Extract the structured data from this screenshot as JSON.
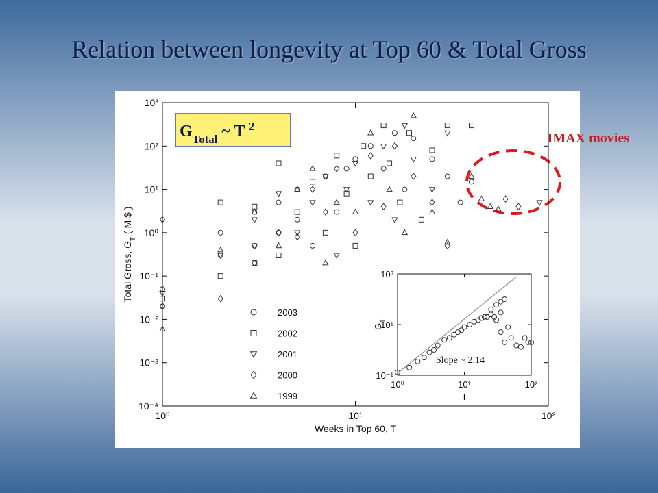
{
  "title": "Relation between longevity at Top 60 & Total Gross",
  "chart_data": [
    {
      "type": "scatter",
      "xlabel": "Weeks in Top 60, T",
      "ylabel": [
        "Total Gross, G",
        "T",
        " ( M $ )"
      ],
      "xscale": "log",
      "yscale": "log",
      "xlim": [
        1,
        100
      ],
      "ylim": [
        0.0001,
        1000
      ],
      "xticks": [
        {
          "value": 1,
          "label": "10⁰"
        },
        {
          "value": 10,
          "label": "10¹"
        },
        {
          "value": 100,
          "label": "10²"
        }
      ],
      "yticks": [
        {
          "value": 0.0001,
          "label": "10⁻⁴"
        },
        {
          "value": 0.001,
          "label": "10⁻³"
        },
        {
          "value": 0.01,
          "label": "10⁻²"
        },
        {
          "value": 0.1,
          "label": "10⁻¹"
        },
        {
          "value": 1,
          "label": "10⁰"
        },
        {
          "value": 10,
          "label": "10¹"
        },
        {
          "value": 100,
          "label": "10²"
        },
        {
          "value": 1000,
          "label": "10³"
        }
      ],
      "series": [
        {
          "name": "2003",
          "marker": "circle",
          "color": "#333333",
          "x": [
            1,
            1,
            2,
            2,
            3,
            3,
            4,
            4,
            5,
            5,
            6,
            7,
            8,
            9,
            10,
            12,
            14,
            16,
            18,
            20,
            25,
            30,
            35,
            40
          ],
          "values": [
            0.05,
            0.02,
            0.3,
            1,
            0.5,
            3,
            1,
            5,
            2,
            10,
            0.5,
            20,
            3,
            30,
            50,
            100,
            30,
            200,
            10,
            150,
            50,
            20,
            5,
            15
          ]
        },
        {
          "name": "2002",
          "marker": "square",
          "color": "#333333",
          "x": [
            1,
            2,
            2,
            3,
            3,
            4,
            4,
            5,
            6,
            7,
            8,
            9,
            10,
            11,
            12,
            14,
            15,
            17,
            19,
            22,
            25,
            30,
            40
          ],
          "values": [
            0.03,
            0.1,
            5,
            0.2,
            4,
            0.3,
            40,
            3,
            15,
            1,
            60,
            8,
            0.5,
            100,
            20,
            300,
            40,
            5,
            200,
            2,
            80,
            300,
            300
          ]
        },
        {
          "name": "2001",
          "marker": "triangle-down",
          "color": "#333333",
          "x": [
            1,
            2,
            3,
            3,
            4,
            5,
            6,
            7,
            8,
            9,
            10,
            12,
            14,
            16,
            18,
            20,
            25,
            30,
            90
          ],
          "values": [
            0.04,
            0.3,
            0.5,
            2,
            8,
            1,
            5,
            20,
            0.3,
            10,
            40,
            5,
            100,
            2,
            300,
            50,
            10,
            200,
            5
          ]
        },
        {
          "name": "2000",
          "marker": "diamond",
          "color": "#333333",
          "x": [
            1,
            1,
            2,
            3,
            4,
            5,
            6,
            7,
            8,
            10,
            12,
            14,
            16,
            20,
            25,
            30,
            60,
            70
          ],
          "values": [
            2,
            0.02,
            0.03,
            0.2,
            1,
            0.8,
            10,
            3,
            30,
            1,
            60,
            4,
            100,
            20,
            5,
            0.5,
            6,
            4
          ]
        },
        {
          "name": "1999",
          "marker": "triangle-up",
          "color": "#333333",
          "x": [
            1,
            2,
            3,
            4,
            5,
            6,
            7,
            8,
            10,
            12,
            15,
            18,
            20,
            25,
            30,
            40,
            45,
            50,
            55
          ],
          "values": [
            0.006,
            0.4,
            3,
            0.5,
            10,
            30,
            0.2,
            5,
            3,
            200,
            10,
            1,
            500,
            3,
            0.6,
            20,
            6,
            4,
            3.5
          ]
        }
      ],
      "formula": [
        "G",
        "Total",
        " ~ T ",
        "2"
      ],
      "highlight_label": "IMAX movies"
    },
    {
      "type": "scatter",
      "xlabel": "T",
      "ylabel": [
        "G",
        "T"
      ],
      "xscale": "log",
      "yscale": "log",
      "xlim": [
        1,
        100
      ],
      "ylim": [
        0.1,
        1000
      ],
      "xticks": [
        {
          "value": 1,
          "label": "10⁰"
        },
        {
          "value": 10,
          "label": "10¹"
        },
        {
          "value": 100,
          "label": "10²"
        }
      ],
      "yticks": [
        {
          "value": 0.1,
          "label": "10⁻¹"
        },
        {
          "value": 10,
          "label": "10¹"
        },
        {
          "value": 1000,
          "label": "10³"
        }
      ],
      "series": [
        {
          "marker": "circle",
          "color": "#333333",
          "x": [
            1,
            1.5,
            2,
            2.5,
            3,
            3.5,
            4,
            5,
            6,
            7,
            8,
            9,
            10,
            12,
            14,
            16,
            18,
            20,
            22,
            25,
            25,
            28,
            30,
            35,
            40,
            35,
            30,
            35,
            40,
            45,
            50,
            60,
            70,
            80,
            90,
            100
          ],
          "values": [
            0.13,
            0.2,
            0.35,
            0.5,
            0.8,
            1,
            1.5,
            2.5,
            3,
            4,
            5,
            6,
            8,
            10,
            13,
            15,
            18,
            20,
            20,
            25,
            40,
            20,
            60,
            80,
            100,
            30,
            15,
            5,
            2,
            8,
            3,
            1.5,
            1.3,
            3,
            2,
            2
          ]
        }
      ],
      "fit_line": {
        "x": [
          1,
          60
        ],
        "y": [
          0.12,
          766
        ]
      },
      "annotation": "Slope ~ 2.14"
    }
  ]
}
